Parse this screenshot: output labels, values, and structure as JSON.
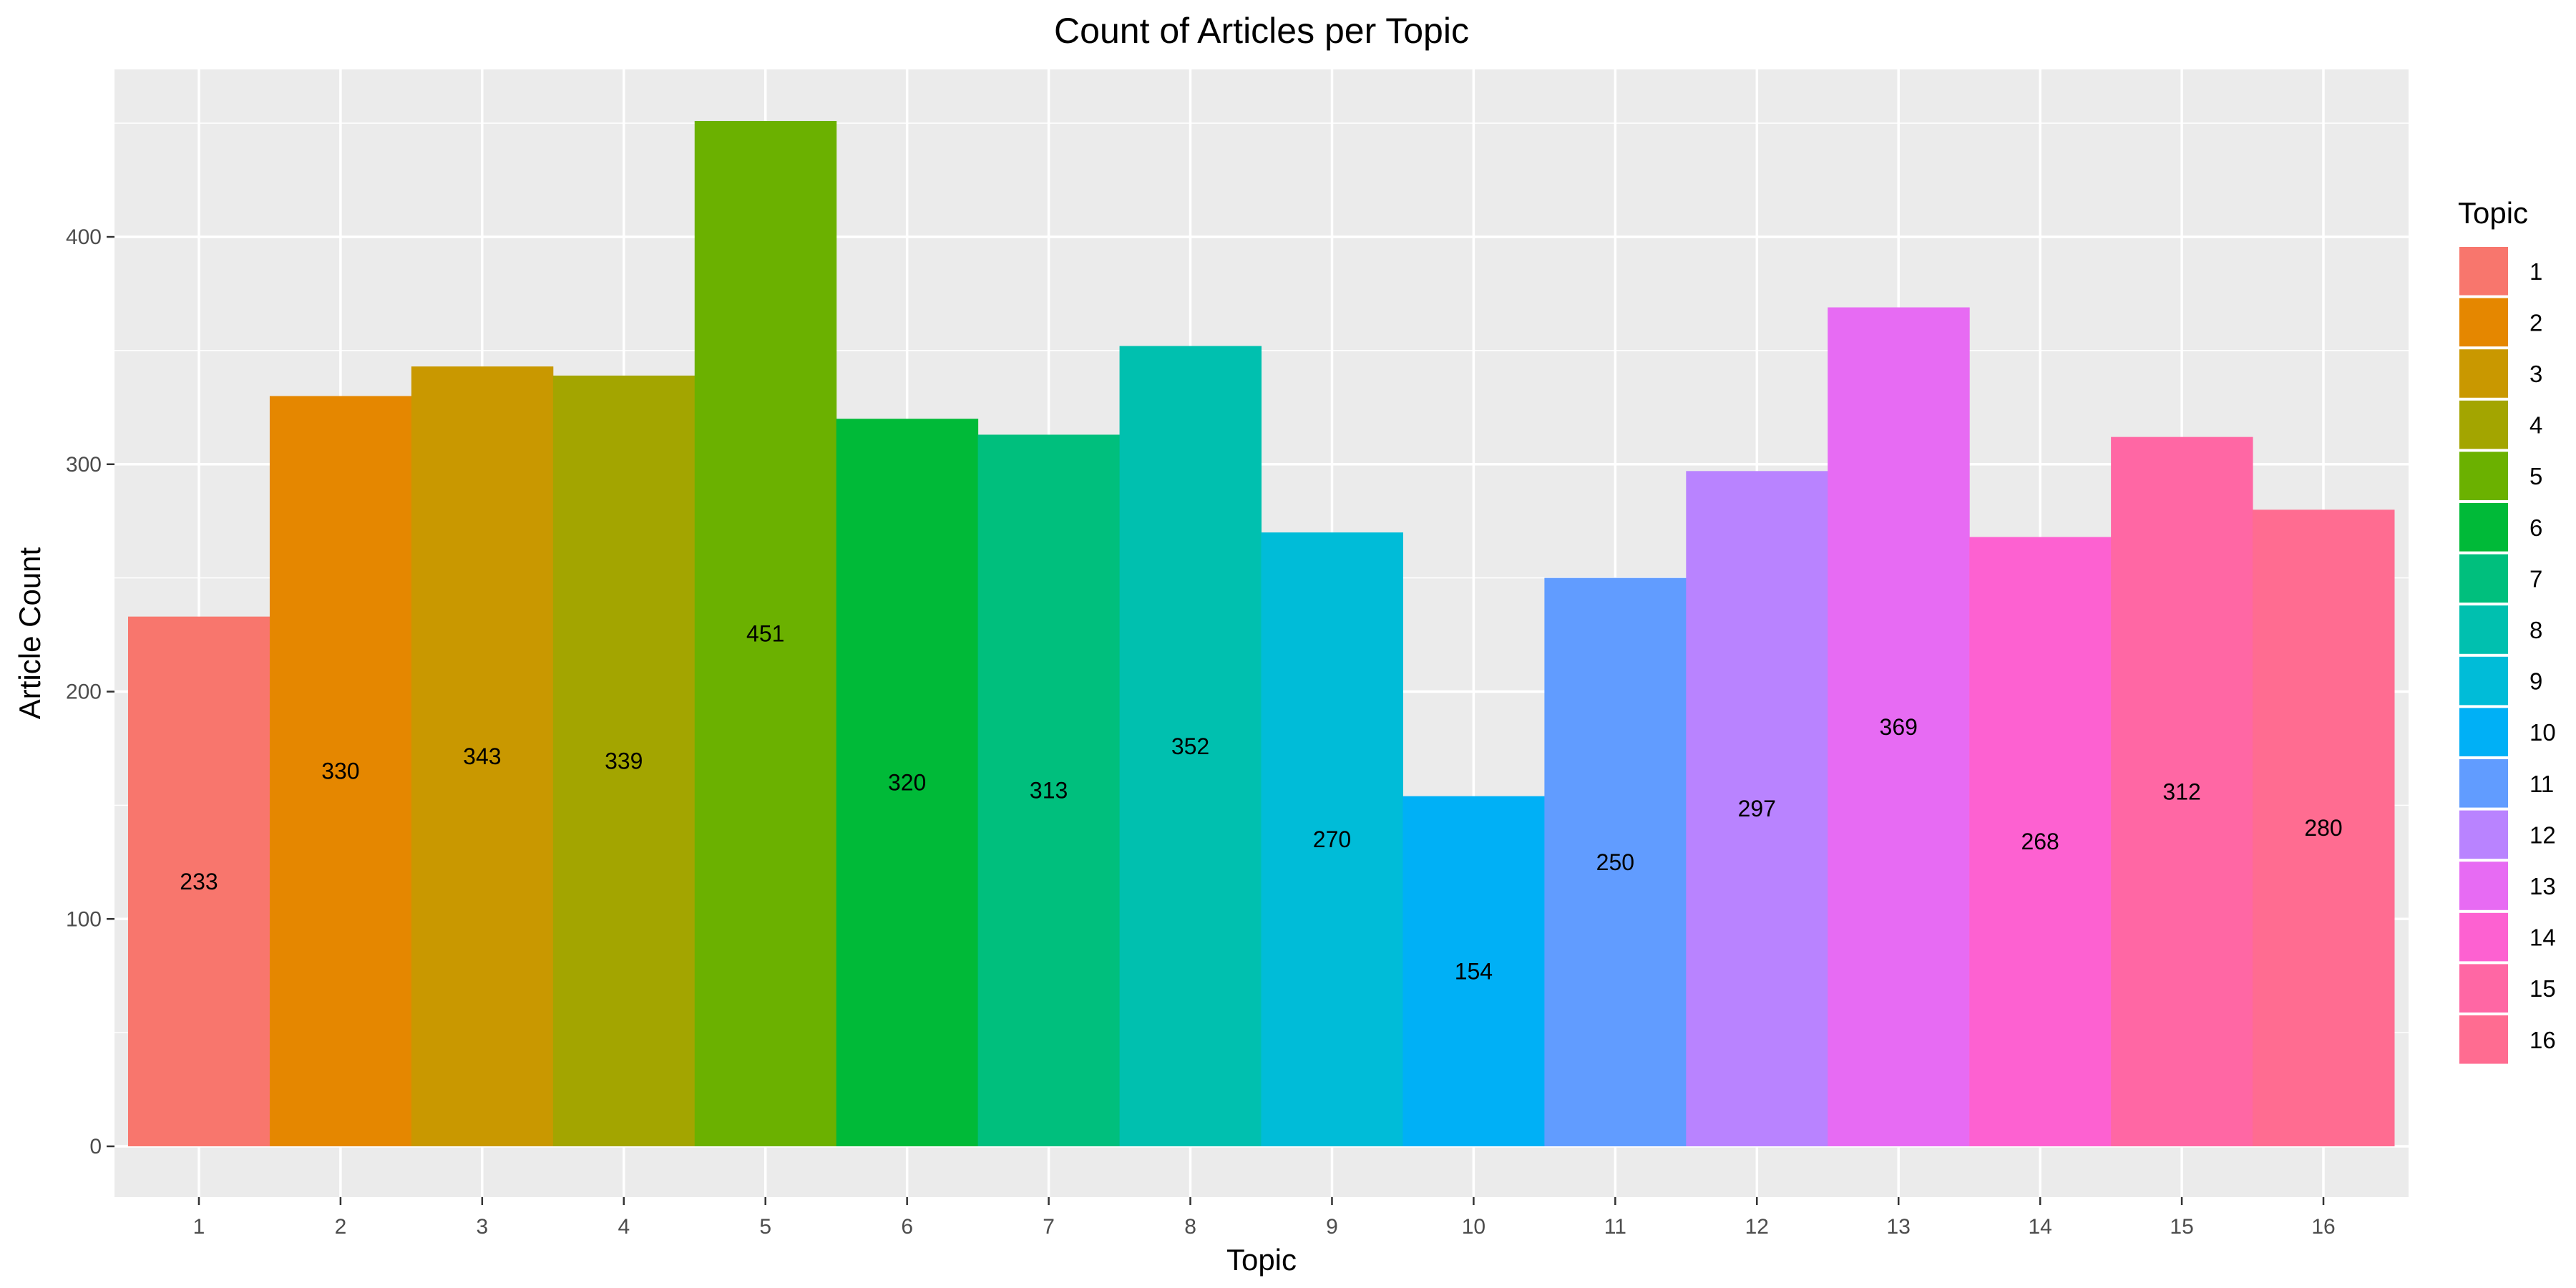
{
  "chart_data": {
    "type": "bar",
    "title": "Count of Articles per Topic",
    "xlabel": "Topic",
    "ylabel": "Article Count",
    "categories": [
      "1",
      "2",
      "3",
      "4",
      "5",
      "6",
      "7",
      "8",
      "9",
      "10",
      "11",
      "12",
      "13",
      "14",
      "15",
      "16"
    ],
    "values": [
      233,
      330,
      343,
      339,
      451,
      320,
      313,
      352,
      270,
      154,
      250,
      297,
      369,
      268,
      312,
      280
    ],
    "colors": [
      "#F8766D",
      "#E58700",
      "#C99800",
      "#A3A500",
      "#6BB100",
      "#00BA38",
      "#00BF7D",
      "#00C0AF",
      "#00BCD8",
      "#00B0F6",
      "#619CFF",
      "#B983FF",
      "#E76BF3",
      "#FD61D1",
      "#FF67A4",
      "#FF6C91"
    ],
    "yticks": [
      0,
      100,
      200,
      300,
      400
    ],
    "ylim": [
      0,
      473.5
    ],
    "grid": true,
    "panel_background": "#EBEBEB",
    "data_labels_position": "middle",
    "legend": {
      "title": "Topic",
      "placement": "right",
      "entries": [
        "1",
        "2",
        "3",
        "4",
        "5",
        "6",
        "7",
        "8",
        "9",
        "10",
        "11",
        "12",
        "13",
        "14",
        "15",
        "16"
      ]
    }
  }
}
